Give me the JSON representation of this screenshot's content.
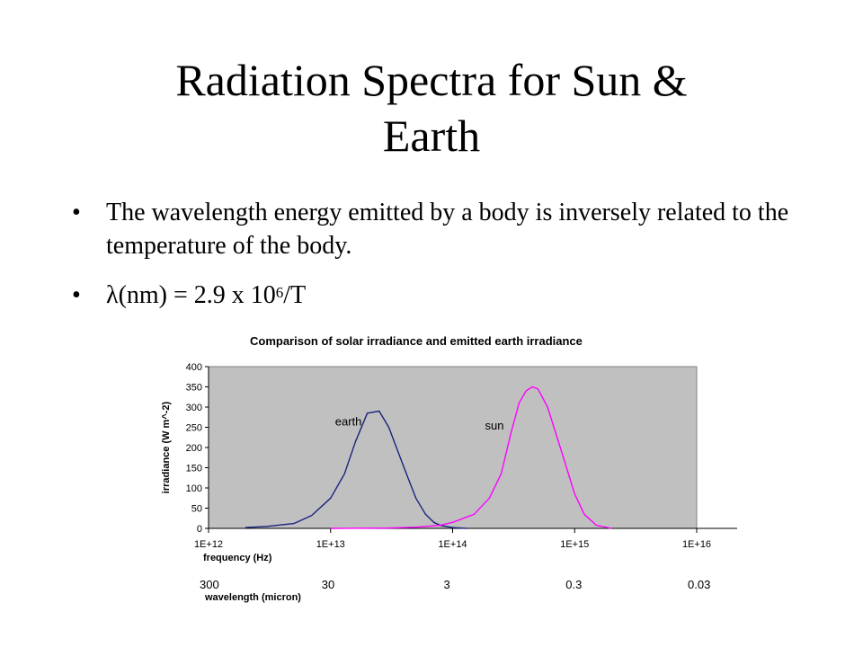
{
  "slide": {
    "title_line1": "Radiation Spectra for Sun &",
    "title_line2": "Earth",
    "bullet1": "The wavelength energy emitted by a body is inversely related to the temperature of the body.",
    "bullet2_prefix": "λ(nm) = 2.9 x 10",
    "bullet2_exponent": "6",
    "bullet2_suffix": "/T",
    "bullet_char": "•"
  },
  "chart_data": {
    "type": "line",
    "title": "Comparison of solar irradiance and emitted earth irradiance",
    "xlabel": "frequency (Hz)",
    "x_scale": "log",
    "xlim": [
      1000000000000.0,
      1e+16
    ],
    "x_ticks": [
      1000000000000.0,
      10000000000000.0,
      100000000000000.0,
      1000000000000000.0,
      1e+16
    ],
    "x_tick_labels": [
      "1E+12",
      "1E+13",
      "1E+14",
      "1E+15",
      "1E+16"
    ],
    "secondary_xlabel": "wavelength (micron)",
    "secondary_tick_labels": [
      "300",
      "30",
      "3",
      "0.3",
      "0.03"
    ],
    "ylabel": "irradiance (W m^-2)",
    "ylim": [
      0,
      400
    ],
    "y_ticks": [
      0,
      50,
      100,
      150,
      200,
      250,
      300,
      350,
      400
    ],
    "plot_background": "#c0c0c0",
    "series": [
      {
        "name": "earth",
        "color": "#1a237e",
        "x": [
          2000000000000.0,
          3000000000000.0,
          5000000000000.0,
          7000000000000.0,
          10000000000000.0,
          13000000000000.0,
          16000000000000.0,
          20000000000000.0,
          25000000000000.0,
          30000000000000.0,
          40000000000000.0,
          50000000000000.0,
          60000000000000.0,
          70000000000000.0,
          80000000000000.0,
          100000000000000.0,
          130000000000000.0
        ],
        "y": [
          2,
          5,
          12,
          32,
          75,
          135,
          215,
          285,
          290,
          250,
          150,
          75,
          35,
          15,
          7,
          2,
          0
        ]
      },
      {
        "name": "sun",
        "color": "#ff00ff",
        "x": [
          10000000000000.0,
          30000000000000.0,
          50000000000000.0,
          80000000000000.0,
          100000000000000.0,
          150000000000000.0,
          200000000000000.0,
          250000000000000.0,
          300000000000000.0,
          350000000000000.0,
          400000000000000.0,
          450000000000000.0,
          500000000000000.0,
          600000000000000.0,
          800000000000000.0,
          1000000000000000.0,
          1200000000000000.0,
          1500000000000000.0,
          2000000000000000.0
        ],
        "y": [
          0,
          1,
          3,
          8,
          15,
          35,
          75,
          135,
          235,
          310,
          340,
          350,
          345,
          300,
          180,
          85,
          35,
          8,
          0
        ]
      }
    ]
  }
}
